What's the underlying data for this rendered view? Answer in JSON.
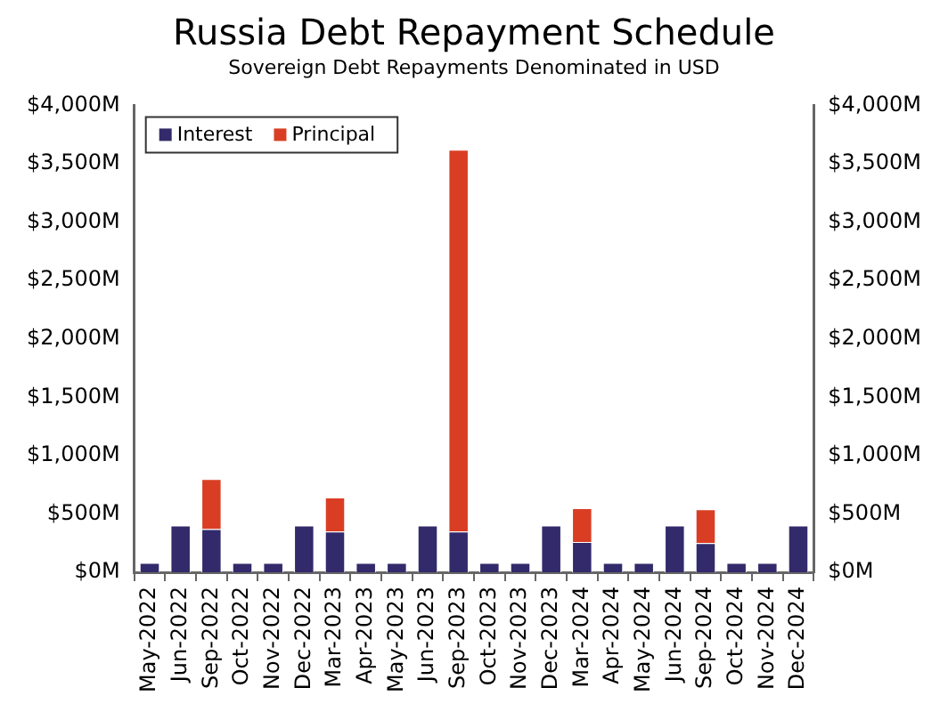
{
  "chart_data": {
    "type": "bar",
    "title": "Russia Debt Repayment Schedule",
    "subtitle": "Sovereign Debt Repayments Denominated in USD",
    "categories": [
      "May-2022",
      "Jun-2022",
      "Sep-2022",
      "Oct-2022",
      "Nov-2022",
      "Dec-2022",
      "Mar-2023",
      "Apr-2023",
      "May-2023",
      "Jun-2023",
      "Sep-2023",
      "Oct-2023",
      "Nov-2023",
      "Dec-2023",
      "Mar-2024",
      "Apr-2024",
      "May-2024",
      "Jun-2024",
      "Sep-2024",
      "Oct-2024",
      "Nov-2024",
      "Dec-2024"
    ],
    "stacked": true,
    "series": [
      {
        "name": "Interest",
        "color": "#332a6b",
        "values": [
          80,
          400,
          370,
          80,
          80,
          400,
          350,
          80,
          80,
          400,
          350,
          80,
          80,
          400,
          260,
          80,
          80,
          400,
          250,
          80,
          80,
          400
        ]
      },
      {
        "name": "Principal",
        "color": "#d93e24",
        "values": [
          null,
          null,
          430,
          null,
          null,
          null,
          290,
          null,
          null,
          null,
          3270,
          null,
          null,
          null,
          290,
          null,
          null,
          null,
          290,
          null,
          null,
          null
        ]
      }
    ],
    "ylim": [
      0,
      4000
    ],
    "yticks": [
      {
        "value": 0,
        "label": "$0M"
      },
      {
        "value": 500,
        "label": "$500M"
      },
      {
        "value": 1000,
        "label": "$1,000M"
      },
      {
        "value": 1500,
        "label": "$1,500M"
      },
      {
        "value": 2000,
        "label": "$2,000M"
      },
      {
        "value": 2500,
        "label": "$2,500M"
      },
      {
        "value": 3000,
        "label": "$3,000M"
      },
      {
        "value": 3500,
        "label": "$3,500M"
      },
      {
        "value": 4000,
        "label": "$4,000M"
      }
    ],
    "y2lim": [
      0,
      4000
    ],
    "y2ticks": [
      {
        "value": 0,
        "label": "$0M"
      },
      {
        "value": 500,
        "label": "$500M"
      },
      {
        "value": 1000,
        "label": "$1,000M"
      },
      {
        "value": 1500,
        "label": "$1,500M"
      },
      {
        "value": 2000,
        "label": "$2,000M"
      },
      {
        "value": 2500,
        "label": "$2,500M"
      },
      {
        "value": 3000,
        "label": "$3,000M"
      },
      {
        "value": 3500,
        "label": "$3,500M"
      },
      {
        "value": 4000,
        "label": "$4,000M"
      }
    ],
    "legend": "top left",
    "grid": false
  }
}
